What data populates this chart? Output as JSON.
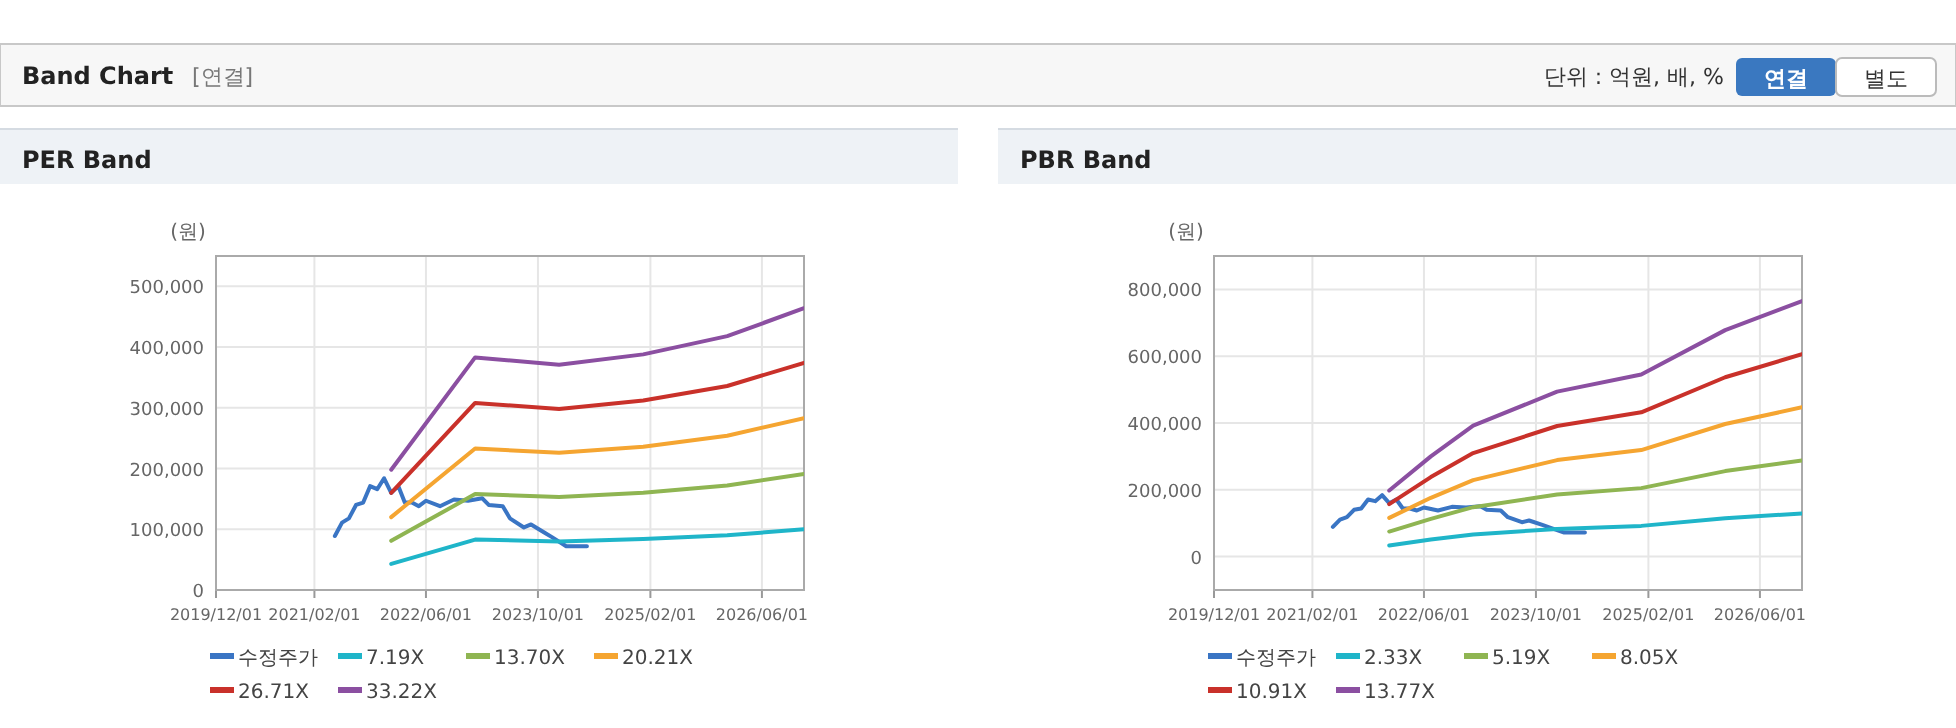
{
  "chart_data": [
    {
      "type": "other",
      "title": "Band Chart",
      "annotations": [
        "[연결]",
        "단위 : 억원, 배, %",
        "연결",
        "별도"
      ]
    },
    {
      "type": "line",
      "title": "PER Band",
      "ylabel": "(원)",
      "xlim": [
        "2019-12-01",
        "2026-12-01"
      ],
      "ylim": [
        0,
        550000
      ],
      "xticks": [
        {
          "value": "2019-12-01",
          "label": "2019/12/01"
        },
        {
          "value": "2021-02-01",
          "label": "2021/02/01"
        },
        {
          "value": "2022-06-01",
          "label": "2022/06/01"
        },
        {
          "value": "2023-10-01",
          "label": "2023/10/01"
        },
        {
          "value": "2025-02-01",
          "label": "2025/02/01"
        },
        {
          "value": "2026-06-01",
          "label": "2026/06/01"
        }
      ],
      "yticks": [
        0,
        {
          "value": 100000,
          "label": "100,000"
        },
        {
          "value": 200000,
          "label": "200,000"
        },
        {
          "value": 300000,
          "label": "300,000"
        },
        {
          "value": 400000,
          "label": "400,000"
        },
        {
          "value": 500000,
          "label": "500,000"
        }
      ],
      "grid": true,
      "legend": "bottom",
      "series": [
        {
          "name": "수정주가",
          "color": "#3a75c4",
          "x": [
            "2021-05",
            "2021-06",
            "2021-07",
            "2021-08",
            "2021-09",
            "2021-10",
            "2021-11",
            "2021-12",
            "2022-01",
            "2022-02",
            "2022-03",
            "2022-04",
            "2022-05",
            "2022-06",
            "2022-08",
            "2022-10",
            "2022-12",
            "2023-02",
            "2023-03",
            "2023-05",
            "2023-06",
            "2023-08",
            "2023-09",
            "2023-11",
            "2023-12",
            "2024-02",
            "2024-05"
          ],
          "values": [
            89000,
            111000,
            118000,
            140000,
            144000,
            171000,
            166000,
            184000,
            160000,
            171000,
            144000,
            144000,
            138000,
            147000,
            138000,
            149000,
            147000,
            151000,
            140000,
            138000,
            118000,
            103000,
            108000,
            94000,
            87000,
            72000,
            72000
          ]
        },
        {
          "name": "7.19X",
          "color": "#1fb5c9",
          "x": [
            "2022-01",
            "2023-01",
            "2024-01",
            "2025-01",
            "2026-01",
            "2026-12"
          ],
          "values": [
            43000,
            83000,
            80000,
            84000,
            90000,
            100000
          ]
        },
        {
          "name": "13.70X",
          "color": "#8fb552",
          "x": [
            "2022-01",
            "2023-01",
            "2024-01",
            "2025-01",
            "2026-01",
            "2026-12"
          ],
          "values": [
            81000,
            158000,
            153000,
            160000,
            172000,
            191000
          ]
        },
        {
          "name": "20.21X",
          "color": "#f5a531",
          "x": [
            "2022-01",
            "2023-01",
            "2024-01",
            "2025-01",
            "2026-01",
            "2026-12"
          ],
          "values": [
            120000,
            233000,
            226000,
            236000,
            254000,
            283000
          ]
        },
        {
          "name": "26.71X",
          "color": "#c9312a",
          "x": [
            "2022-01",
            "2023-01",
            "2024-01",
            "2025-01",
            "2026-01",
            "2026-12"
          ],
          "values": [
            160000,
            308000,
            298000,
            312000,
            336000,
            374000
          ]
        },
        {
          "name": "33.22X",
          "color": "#8b4fa1",
          "x": [
            "2022-01",
            "2023-01",
            "2024-01",
            "2025-01",
            "2026-01",
            "2026-12"
          ],
          "values": [
            198000,
            383000,
            371000,
            388000,
            418000,
            464000
          ]
        }
      ]
    },
    {
      "type": "line",
      "title": "PBR Band",
      "ylabel": "(원)",
      "xlim": [
        "2019-12-01",
        "2026-12-01"
      ],
      "ylim": [
        -100000,
        900000
      ],
      "xticks": [
        {
          "value": "2019-12-01",
          "label": "2019/12/01"
        },
        {
          "value": "2021-02-01",
          "label": "2021/02/01"
        },
        {
          "value": "2022-06-01",
          "label": "2022/06/01"
        },
        {
          "value": "2023-10-01",
          "label": "2023/10/01"
        },
        {
          "value": "2025-02-01",
          "label": "2025/02/01"
        },
        {
          "value": "2026-06-01",
          "label": "2026/06/01"
        }
      ],
      "yticks": [
        0,
        {
          "value": 200000,
          "label": "200,000"
        },
        {
          "value": 400000,
          "label": "400,000"
        },
        {
          "value": 600000,
          "label": "600,000"
        },
        {
          "value": 800000,
          "label": "800,000"
        }
      ],
      "grid": true,
      "legend": "bottom",
      "series": [
        {
          "name": "수정주가",
          "color": "#3a75c4",
          "x": [
            "2021-05",
            "2021-06",
            "2021-07",
            "2021-08",
            "2021-09",
            "2021-10",
            "2021-11",
            "2021-12",
            "2022-01",
            "2022-02",
            "2022-03",
            "2022-04",
            "2022-05",
            "2022-06",
            "2022-08",
            "2022-10",
            "2022-12",
            "2023-02",
            "2023-03",
            "2023-05",
            "2023-06",
            "2023-08",
            "2023-09",
            "2023-11",
            "2023-12",
            "2024-02",
            "2024-05"
          ],
          "values": [
            89000,
            111000,
            118000,
            140000,
            144000,
            171000,
            166000,
            184000,
            160000,
            171000,
            144000,
            144000,
            138000,
            147000,
            138000,
            149000,
            147000,
            151000,
            140000,
            138000,
            118000,
            103000,
            108000,
            94000,
            87000,
            72000,
            72000
          ]
        },
        {
          "name": "2.33X",
          "color": "#1fb5c9",
          "x": [
            "2022-01",
            "2022-07",
            "2023-01",
            "2024-01",
            "2025-01",
            "2026-01",
            "2026-12"
          ],
          "values": [
            33000,
            51000,
            66000,
            83000,
            92000,
            115000,
            129000
          ]
        },
        {
          "name": "5.19X",
          "color": "#8fb552",
          "x": [
            "2022-01",
            "2022-07",
            "2023-01",
            "2024-01",
            "2025-01",
            "2026-01",
            "2026-12"
          ],
          "values": [
            75000,
            113000,
            148000,
            186000,
            205000,
            256000,
            288000
          ]
        },
        {
          "name": "8.05X",
          "color": "#f5a531",
          "x": [
            "2022-01",
            "2022-07",
            "2023-01",
            "2024-01",
            "2025-01",
            "2026-01",
            "2026-12"
          ],
          "values": [
            116000,
            176000,
            229000,
            289000,
            319000,
            397000,
            447000
          ]
        },
        {
          "name": "10.91X",
          "color": "#c9312a",
          "x": [
            "2022-01",
            "2022-07",
            "2023-01",
            "2024-01",
            "2025-01",
            "2026-01",
            "2026-12"
          ],
          "values": [
            157000,
            238000,
            310000,
            391000,
            432000,
            537000,
            606000
          ]
        },
        {
          "name": "13.77X",
          "color": "#8b4fa1",
          "x": [
            "2022-01",
            "2022-07",
            "2023-01",
            "2024-01",
            "2025-01",
            "2026-01",
            "2026-12"
          ],
          "values": [
            198000,
            300000,
            392000,
            494000,
            545000,
            678000,
            765000
          ]
        }
      ]
    }
  ]
}
